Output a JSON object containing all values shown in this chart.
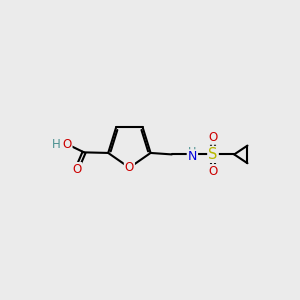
{
  "bg_color": "#ebebeb",
  "atom_colors": {
    "C": "#000000",
    "O": "#cc0000",
    "N": "#0000dd",
    "S": "#b8b800",
    "H": "#4a9090"
  },
  "bond_color": "#000000",
  "bond_width": 1.5,
  "font_size": 8.5,
  "xlim": [
    0,
    10
  ],
  "ylim": [
    0,
    10
  ]
}
